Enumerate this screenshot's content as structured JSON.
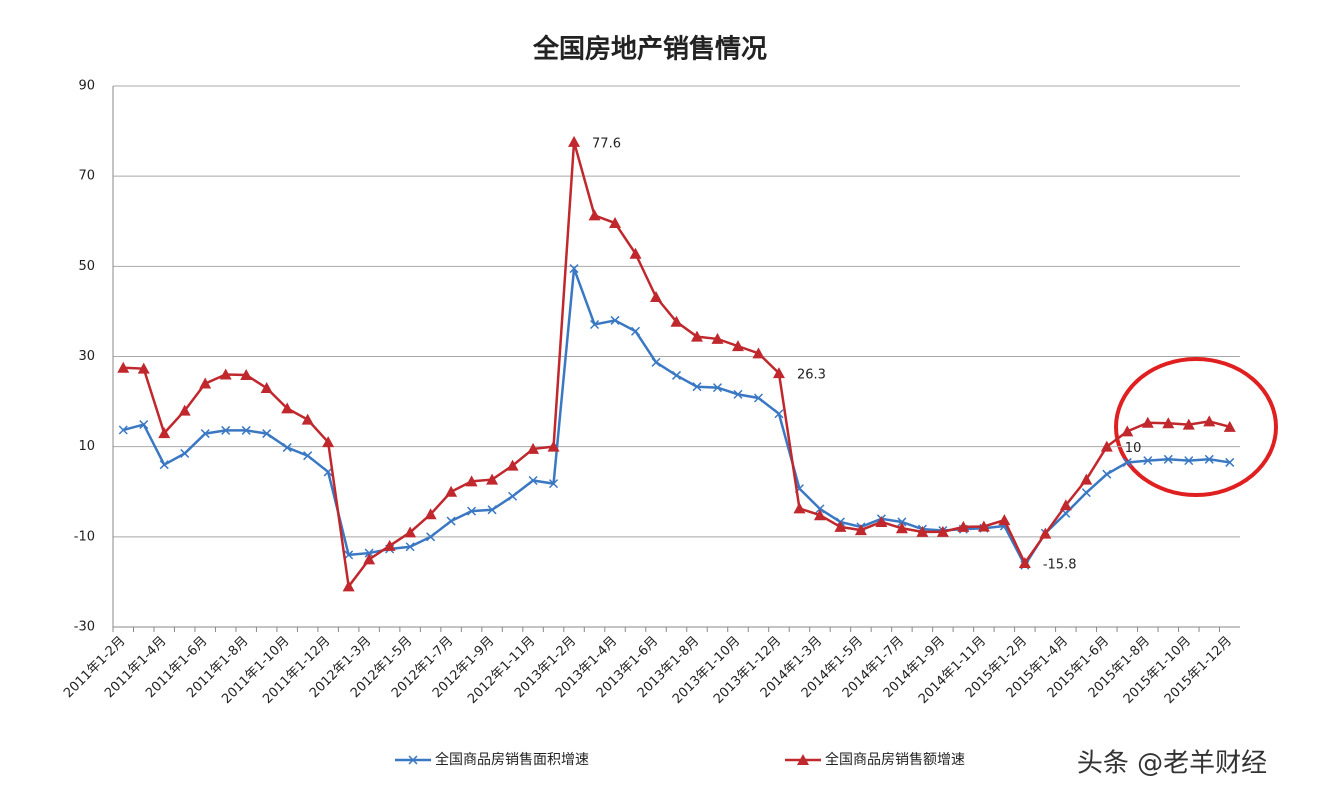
{
  "chart_data": {
    "type": "line",
    "title": "全国房地产销售情况",
    "categories": [
      "2011年1-2月",
      null,
      "2011年1-4月",
      null,
      "2011年1-6月",
      null,
      "2011年1-8月",
      null,
      "2011年1-10月",
      null,
      "2011年1-12月",
      null,
      "2012年1-3月",
      null,
      "2012年1-5月",
      null,
      "2012年1-7月",
      null,
      "2012年1-9月",
      null,
      "2012年1-11月",
      null,
      "2013年1-2月",
      null,
      "2013年1-4月",
      null,
      "2013年1-6月",
      null,
      "2013年1-8月",
      null,
      "2013年1-10月",
      null,
      "2013年1-12月",
      null,
      "2014年1-3月",
      null,
      "2014年1-5月",
      null,
      "2014年1-7月",
      null,
      "2014年1-9月",
      null,
      "2014年1-11月",
      null,
      "2015年1-2月",
      null,
      "2015年1-4月",
      null,
      "2015年1-6月",
      null,
      "2015年1-8月",
      null,
      "2015年1-10月",
      null,
      "2015年1-12月"
    ],
    "series": [
      {
        "name": "全国商品房销售面积增速",
        "color": "#3a78c3",
        "marker": "x",
        "values": [
          13.7,
          14.9,
          6,
          8.5,
          12.9,
          13.6,
          13.6,
          12.9,
          9.8,
          8,
          4.4,
          -14,
          -13.6,
          -12.7,
          -12.2,
          -10,
          -6.5,
          -4.3,
          -4,
          -1,
          2.5,
          1.8,
          49.5,
          37.1,
          38,
          35.6,
          28.7,
          25.8,
          23.3,
          23.1,
          21.6,
          20.8,
          17.3,
          0.7,
          -3.8,
          -6.7,
          -7.8,
          -6,
          -6.7,
          -8.3,
          -8.6,
          -8.3,
          -8.1,
          -7.6,
          -16.3,
          -9.2,
          -4.8,
          -0.2,
          3.9,
          6.5,
          6.9,
          7.2,
          6.9,
          7.2,
          6.5
        ]
      },
      {
        "name": "全国商品房销售额增速",
        "color": "#c0282d",
        "marker": "triangle",
        "values": [
          27.5,
          27.3,
          13,
          18,
          24,
          26,
          25.9,
          23,
          18.5,
          16,
          11,
          -21,
          -15,
          -12,
          -9,
          -5,
          0,
          2.3,
          2.7,
          5.8,
          9.5,
          10,
          77.6,
          61.3,
          59.6,
          52.8,
          43.2,
          37.7,
          34.4,
          33.9,
          32.3,
          30.7,
          26.3,
          -3.7,
          -5.2,
          -7.8,
          -8.5,
          -6.7,
          -8.1,
          -8.9,
          -8.9,
          -7.8,
          -7.7,
          -6.3,
          -15.8,
          -9.3,
          -3,
          2.7,
          10,
          13.4,
          15.3,
          15.2,
          14.9,
          15.6,
          14.4
        ],
        "labeled_points": [
          22,
          32,
          44,
          48
        ]
      }
    ],
    "ylim": [
      -30,
      90
    ],
    "yticks": [
      -30,
      -10,
      10,
      30,
      50,
      70,
      90
    ],
    "grid": true,
    "legend": "bottom",
    "watermark": "头条 @老羊财经"
  }
}
